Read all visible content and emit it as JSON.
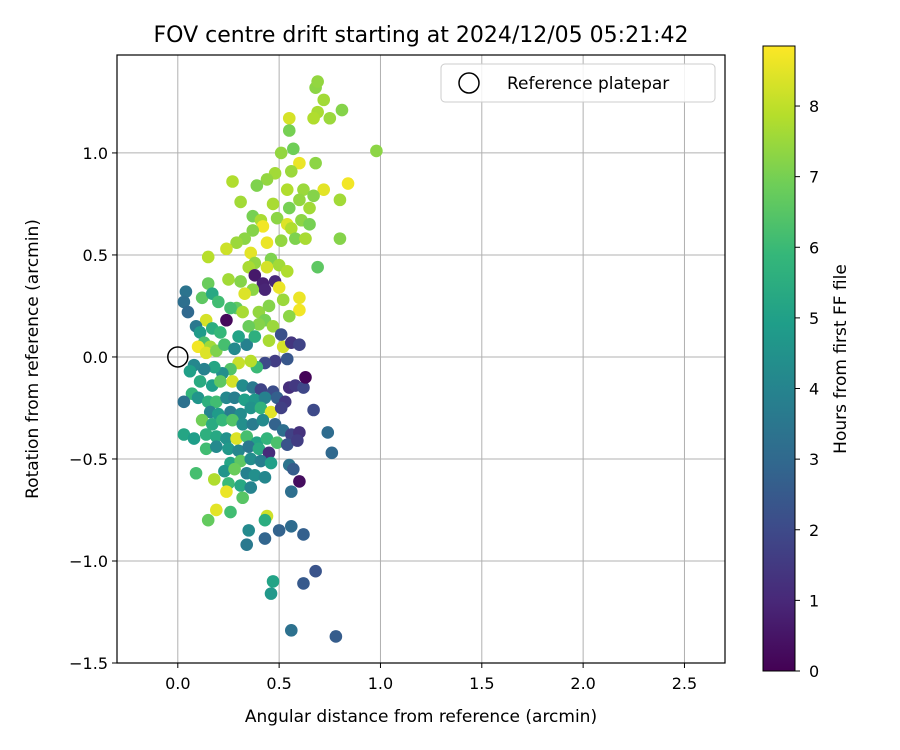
{
  "chart_data": {
    "type": "scatter",
    "title": "FOV centre drift starting at 2024/12/05 05:21:42",
    "xlabel": "Angular distance from reference (arcmin)",
    "ylabel": "Rotation from reference (arcmin)",
    "xlim": [
      -0.3,
      2.7
    ],
    "ylim": [
      -1.5,
      1.48
    ],
    "xticks": [
      0.0,
      0.5,
      1.0,
      1.5,
      2.0,
      2.5
    ],
    "xtick_labels": [
      "0.0",
      "0.5",
      "1.0",
      "1.5",
      "2.0",
      "2.5"
    ],
    "yticks": [
      -1.5,
      -1.0,
      -0.5,
      0.0,
      0.5,
      1.0
    ],
    "ytick_labels": [
      "−1.5",
      "−1.0",
      "−0.5",
      "0.0",
      "0.5",
      "1.0"
    ],
    "grid": true,
    "legend": {
      "placement": "top-right",
      "entries": [
        {
          "label": "Reference platepar",
          "marker": "open-circle"
        }
      ]
    },
    "reference_point": {
      "x": 0.0,
      "y": 0.0
    },
    "colorbar": {
      "label": "Hours from first FF file",
      "colormap": "viridis",
      "range": [
        0,
        8.85
      ],
      "ticks": [
        0,
        1,
        2,
        3,
        4,
        5,
        6,
        7,
        8
      ],
      "tick_labels": [
        "0",
        "1",
        "2",
        "3",
        "4",
        "5",
        "6",
        "7",
        "8"
      ]
    },
    "colormap_stops": [
      "#440154",
      "#482878",
      "#3e4989",
      "#31688e",
      "#26828e",
      "#1f9e89",
      "#35b779",
      "#6ece58",
      "#b5de2b",
      "#fde725"
    ],
    "points": [
      {
        "x": 0.98,
        "y": 1.01,
        "h": 7.3
      },
      {
        "x": 0.84,
        "y": 0.85,
        "h": 8.7
      },
      {
        "x": 0.81,
        "y": 1.21,
        "h": 7.2
      },
      {
        "x": 0.75,
        "y": 1.17,
        "h": 7.5
      },
      {
        "x": 0.68,
        "y": 1.32,
        "h": 7.3
      },
      {
        "x": 0.72,
        "y": 1.26,
        "h": 7.6
      },
      {
        "x": 0.69,
        "y": 1.2,
        "h": 7.7
      },
      {
        "x": 0.67,
        "y": 1.17,
        "h": 7.8
      },
      {
        "x": 0.69,
        "y": 1.35,
        "h": 7.4
      },
      {
        "x": 0.55,
        "y": 1.17,
        "h": 8.3
      },
      {
        "x": 0.55,
        "y": 1.11,
        "h": 7.0
      },
      {
        "x": 0.57,
        "y": 1.02,
        "h": 6.9
      },
      {
        "x": 0.51,
        "y": 1.0,
        "h": 7.4
      },
      {
        "x": 0.6,
        "y": 0.95,
        "h": 8.6
      },
      {
        "x": 0.68,
        "y": 0.95,
        "h": 7.3
      },
      {
        "x": 0.56,
        "y": 0.91,
        "h": 7.5
      },
      {
        "x": 0.48,
        "y": 0.9,
        "h": 7.6
      },
      {
        "x": 0.44,
        "y": 0.87,
        "h": 7.4
      },
      {
        "x": 0.39,
        "y": 0.84,
        "h": 7.1
      },
      {
        "x": 0.27,
        "y": 0.86,
        "h": 7.8
      },
      {
        "x": 0.31,
        "y": 0.76,
        "h": 7.6
      },
      {
        "x": 0.54,
        "y": 0.82,
        "h": 7.8
      },
      {
        "x": 0.62,
        "y": 0.82,
        "h": 7.5
      },
      {
        "x": 0.72,
        "y": 0.82,
        "h": 8.5
      },
      {
        "x": 0.67,
        "y": 0.79,
        "h": 7.2
      },
      {
        "x": 0.6,
        "y": 0.77,
        "h": 7.4
      },
      {
        "x": 0.65,
        "y": 0.73,
        "h": 7.6
      },
      {
        "x": 0.55,
        "y": 0.73,
        "h": 7.0
      },
      {
        "x": 0.47,
        "y": 0.75,
        "h": 7.7
      },
      {
        "x": 0.8,
        "y": 0.77,
        "h": 7.6
      },
      {
        "x": 0.37,
        "y": 0.69,
        "h": 7.0
      },
      {
        "x": 0.41,
        "y": 0.67,
        "h": 7.7
      },
      {
        "x": 0.49,
        "y": 0.68,
        "h": 7.3
      },
      {
        "x": 0.61,
        "y": 0.67,
        "h": 7.3
      },
      {
        "x": 0.54,
        "y": 0.65,
        "h": 8.4
      },
      {
        "x": 0.42,
        "y": 0.64,
        "h": 8.7
      },
      {
        "x": 0.37,
        "y": 0.62,
        "h": 7.2
      },
      {
        "x": 0.56,
        "y": 0.63,
        "h": 7.8
      },
      {
        "x": 0.65,
        "y": 0.65,
        "h": 7.0
      },
      {
        "x": 0.58,
        "y": 0.58,
        "h": 7.1
      },
      {
        "x": 0.51,
        "y": 0.57,
        "h": 7.4
      },
      {
        "x": 0.44,
        "y": 0.56,
        "h": 8.6
      },
      {
        "x": 0.33,
        "y": 0.58,
        "h": 7.3
      },
      {
        "x": 0.29,
        "y": 0.56,
        "h": 7.5
      },
      {
        "x": 0.24,
        "y": 0.53,
        "h": 8.2
      },
      {
        "x": 0.36,
        "y": 0.51,
        "h": 8.5
      },
      {
        "x": 0.15,
        "y": 0.49,
        "h": 7.9
      },
      {
        "x": 0.63,
        "y": 0.58,
        "h": 7.7
      },
      {
        "x": 0.8,
        "y": 0.58,
        "h": 7.2
      },
      {
        "x": 0.46,
        "y": 0.48,
        "h": 7.1
      },
      {
        "x": 0.38,
        "y": 0.46,
        "h": 7.4
      },
      {
        "x": 0.35,
        "y": 0.44,
        "h": 7.7
      },
      {
        "x": 0.44,
        "y": 0.44,
        "h": 8.3
      },
      {
        "x": 0.5,
        "y": 0.45,
        "h": 7.6
      },
      {
        "x": 0.69,
        "y": 0.44,
        "h": 6.6
      },
      {
        "x": 0.54,
        "y": 0.42,
        "h": 7.8
      },
      {
        "x": 0.38,
        "y": 0.4,
        "h": 0.6
      },
      {
        "x": 0.25,
        "y": 0.38,
        "h": 7.6
      },
      {
        "x": 0.31,
        "y": 0.37,
        "h": 7.2
      },
      {
        "x": 0.42,
        "y": 0.36,
        "h": 0.8
      },
      {
        "x": 0.48,
        "y": 0.37,
        "h": 1.0
      },
      {
        "x": 0.43,
        "y": 0.33,
        "h": 0.9
      },
      {
        "x": 0.37,
        "y": 0.33,
        "h": 7.3
      },
      {
        "x": 0.33,
        "y": 0.31,
        "h": 8.4
      },
      {
        "x": 0.5,
        "y": 0.34,
        "h": 8.6
      },
      {
        "x": 0.15,
        "y": 0.36,
        "h": 6.8
      },
      {
        "x": 0.12,
        "y": 0.29,
        "h": 6.6
      },
      {
        "x": 0.17,
        "y": 0.31,
        "h": 5.3
      },
      {
        "x": 0.2,
        "y": 0.27,
        "h": 6.1
      },
      {
        "x": 0.29,
        "y": 0.24,
        "h": 6.7
      },
      {
        "x": 0.26,
        "y": 0.24,
        "h": 6.2
      },
      {
        "x": 0.32,
        "y": 0.22,
        "h": 7.7
      },
      {
        "x": 0.4,
        "y": 0.22,
        "h": 7.4
      },
      {
        "x": 0.45,
        "y": 0.25,
        "h": 7.2
      },
      {
        "x": 0.52,
        "y": 0.28,
        "h": 7.5
      },
      {
        "x": 0.6,
        "y": 0.29,
        "h": 8.6
      },
      {
        "x": 0.6,
        "y": 0.23,
        "h": 8.7
      },
      {
        "x": 0.55,
        "y": 0.2,
        "h": 7.3
      },
      {
        "x": 0.43,
        "y": 0.18,
        "h": 7.0
      },
      {
        "x": 0.4,
        "y": 0.16,
        "h": 7.2
      },
      {
        "x": 0.35,
        "y": 0.15,
        "h": 6.8
      },
      {
        "x": 0.47,
        "y": 0.15,
        "h": 7.5
      },
      {
        "x": 0.24,
        "y": 0.18,
        "h": 0.2
      },
      {
        "x": 0.14,
        "y": 0.18,
        "h": 8.3
      },
      {
        "x": 0.04,
        "y": 0.32,
        "h": 3.4
      },
      {
        "x": 0.03,
        "y": 0.27,
        "h": 3.2
      },
      {
        "x": 0.05,
        "y": 0.22,
        "h": 3.0
      },
      {
        "x": 0.09,
        "y": 0.15,
        "h": 3.6
      },
      {
        "x": 0.11,
        "y": 0.12,
        "h": 4.8
      },
      {
        "x": 0.17,
        "y": 0.14,
        "h": 5.5
      },
      {
        "x": 0.21,
        "y": 0.12,
        "h": 5.9
      },
      {
        "x": 0.13,
        "y": 0.07,
        "h": 6.3
      },
      {
        "x": 0.16,
        "y": 0.05,
        "h": 7.6
      },
      {
        "x": 0.1,
        "y": 0.05,
        "h": 8.7
      },
      {
        "x": 0.14,
        "y": 0.02,
        "h": 8.4
      },
      {
        "x": 0.19,
        "y": 0.03,
        "h": 7.1
      },
      {
        "x": 0.23,
        "y": 0.06,
        "h": 6.2
      },
      {
        "x": 0.28,
        "y": 0.04,
        "h": 4.2
      },
      {
        "x": 0.34,
        "y": 0.06,
        "h": 3.9
      },
      {
        "x": 0.3,
        "y": 0.1,
        "h": 5.1
      },
      {
        "x": 0.38,
        "y": 0.1,
        "h": 5.6
      },
      {
        "x": 0.45,
        "y": 0.08,
        "h": 7.7
      },
      {
        "x": 0.52,
        "y": 0.05,
        "h": 8.3
      },
      {
        "x": 0.56,
        "y": 0.07,
        "h": 1.4
      },
      {
        "x": 0.6,
        "y": 0.06,
        "h": 1.8
      },
      {
        "x": 0.51,
        "y": 0.11,
        "h": 2.2
      },
      {
        "x": 0.54,
        "y": -0.01,
        "h": 2.4
      },
      {
        "x": 0.48,
        "y": -0.02,
        "h": 1.6
      },
      {
        "x": 0.43,
        "y": -0.03,
        "h": 2.0
      },
      {
        "x": 0.39,
        "y": -0.05,
        "h": 6.0
      },
      {
        "x": 0.36,
        "y": -0.02,
        "h": 7.9
      },
      {
        "x": 0.3,
        "y": -0.03,
        "h": 8.1
      },
      {
        "x": 0.26,
        "y": -0.06,
        "h": 6.4
      },
      {
        "x": 0.22,
        "y": -0.08,
        "h": 4.4
      },
      {
        "x": 0.18,
        "y": -0.05,
        "h": 5.2
      },
      {
        "x": 0.13,
        "y": -0.06,
        "h": 3.9
      },
      {
        "x": 0.08,
        "y": -0.04,
        "h": 4.1
      },
      {
        "x": 0.06,
        "y": -0.07,
        "h": 5.0
      },
      {
        "x": 0.11,
        "y": -0.12,
        "h": 5.4
      },
      {
        "x": 0.17,
        "y": -0.14,
        "h": 4.9
      },
      {
        "x": 0.21,
        "y": -0.12,
        "h": 6.6
      },
      {
        "x": 0.27,
        "y": -0.12,
        "h": 8.3
      },
      {
        "x": 0.32,
        "y": -0.14,
        "h": 4.3
      },
      {
        "x": 0.37,
        "y": -0.15,
        "h": 3.6
      },
      {
        "x": 0.41,
        "y": -0.16,
        "h": 1.8
      },
      {
        "x": 0.47,
        "y": -0.17,
        "h": 2.1
      },
      {
        "x": 0.55,
        "y": -0.15,
        "h": 1.2
      },
      {
        "x": 0.58,
        "y": -0.14,
        "h": 1.5
      },
      {
        "x": 0.62,
        "y": -0.15,
        "h": 1.9
      },
      {
        "x": 0.63,
        "y": -0.1,
        "h": 0.1
      },
      {
        "x": 0.07,
        "y": -0.18,
        "h": 5.8
      },
      {
        "x": 0.03,
        "y": -0.22,
        "h": 3.3
      },
      {
        "x": 0.1,
        "y": -0.2,
        "h": 4.6
      },
      {
        "x": 0.15,
        "y": -0.22,
        "h": 5.6
      },
      {
        "x": 0.19,
        "y": -0.22,
        "h": 6.1
      },
      {
        "x": 0.24,
        "y": -0.2,
        "h": 4.1
      },
      {
        "x": 0.28,
        "y": -0.2,
        "h": 3.8
      },
      {
        "x": 0.33,
        "y": -0.21,
        "h": 5.0
      },
      {
        "x": 0.38,
        "y": -0.21,
        "h": 4.7
      },
      {
        "x": 0.43,
        "y": -0.2,
        "h": 3.9
      },
      {
        "x": 0.49,
        "y": -0.2,
        "h": 2.7
      },
      {
        "x": 0.53,
        "y": -0.22,
        "h": 1.5
      },
      {
        "x": 0.16,
        "y": -0.27,
        "h": 4.0
      },
      {
        "x": 0.2,
        "y": -0.28,
        "h": 4.8
      },
      {
        "x": 0.26,
        "y": -0.27,
        "h": 3.7
      },
      {
        "x": 0.31,
        "y": -0.28,
        "h": 4.3
      },
      {
        "x": 0.36,
        "y": -0.25,
        "h": 4.5
      },
      {
        "x": 0.41,
        "y": -0.25,
        "h": 5.7
      },
      {
        "x": 0.46,
        "y": -0.27,
        "h": 8.5
      },
      {
        "x": 0.51,
        "y": -0.25,
        "h": 1.7
      },
      {
        "x": 0.67,
        "y": -0.26,
        "h": 2.0
      },
      {
        "x": 0.12,
        "y": -0.31,
        "h": 6.9
      },
      {
        "x": 0.17,
        "y": -0.33,
        "h": 5.4
      },
      {
        "x": 0.22,
        "y": -0.31,
        "h": 5.9
      },
      {
        "x": 0.27,
        "y": -0.31,
        "h": 6.4
      },
      {
        "x": 0.32,
        "y": -0.33,
        "h": 4.4
      },
      {
        "x": 0.37,
        "y": -0.33,
        "h": 3.7
      },
      {
        "x": 0.42,
        "y": -0.31,
        "h": 4.2
      },
      {
        "x": 0.48,
        "y": -0.33,
        "h": 2.8
      },
      {
        "x": 0.52,
        "y": -0.36,
        "h": 3.2
      },
      {
        "x": 0.56,
        "y": -0.38,
        "h": 1.8
      },
      {
        "x": 0.6,
        "y": -0.37,
        "h": 1.3
      },
      {
        "x": 0.74,
        "y": -0.37,
        "h": 3.1
      },
      {
        "x": 0.03,
        "y": -0.38,
        "h": 5.2
      },
      {
        "x": 0.08,
        "y": -0.4,
        "h": 4.9
      },
      {
        "x": 0.14,
        "y": -0.38,
        "h": 5.6
      },
      {
        "x": 0.19,
        "y": -0.39,
        "h": 5.3
      },
      {
        "x": 0.24,
        "y": -0.4,
        "h": 4.5
      },
      {
        "x": 0.29,
        "y": -0.4,
        "h": 8.4
      },
      {
        "x": 0.34,
        "y": -0.39,
        "h": 6.2
      },
      {
        "x": 0.39,
        "y": -0.42,
        "h": 5.1
      },
      {
        "x": 0.44,
        "y": -0.4,
        "h": 5.8
      },
      {
        "x": 0.49,
        "y": -0.42,
        "h": 6.3
      },
      {
        "x": 0.54,
        "y": -0.43,
        "h": 2.3
      },
      {
        "x": 0.59,
        "y": -0.41,
        "h": 1.6
      },
      {
        "x": 0.14,
        "y": -0.45,
        "h": 6.1
      },
      {
        "x": 0.19,
        "y": -0.44,
        "h": 4.2
      },
      {
        "x": 0.25,
        "y": -0.45,
        "h": 4.7
      },
      {
        "x": 0.3,
        "y": -0.46,
        "h": 4.1
      },
      {
        "x": 0.35,
        "y": -0.44,
        "h": 3.5
      },
      {
        "x": 0.4,
        "y": -0.45,
        "h": 5.4
      },
      {
        "x": 0.45,
        "y": -0.47,
        "h": 1.1
      },
      {
        "x": 0.76,
        "y": -0.47,
        "h": 3.0
      },
      {
        "x": 0.26,
        "y": -0.52,
        "h": 5.2
      },
      {
        "x": 0.31,
        "y": -0.51,
        "h": 6.6
      },
      {
        "x": 0.36,
        "y": -0.5,
        "h": 4.3
      },
      {
        "x": 0.41,
        "y": -0.51,
        "h": 3.8
      },
      {
        "x": 0.46,
        "y": -0.52,
        "h": 5.0
      },
      {
        "x": 0.55,
        "y": -0.53,
        "h": 3.4
      },
      {
        "x": 0.57,
        "y": -0.55,
        "h": 2.6
      },
      {
        "x": 0.09,
        "y": -0.57,
        "h": 6.2
      },
      {
        "x": 0.23,
        "y": -0.56,
        "h": 4.6
      },
      {
        "x": 0.28,
        "y": -0.55,
        "h": 6.8
      },
      {
        "x": 0.34,
        "y": -0.57,
        "h": 3.9
      },
      {
        "x": 0.38,
        "y": -0.58,
        "h": 4.4
      },
      {
        "x": 0.43,
        "y": -0.59,
        "h": 4.1
      },
      {
        "x": 0.6,
        "y": -0.61,
        "h": 0.3
      },
      {
        "x": 0.18,
        "y": -0.6,
        "h": 7.8
      },
      {
        "x": 0.25,
        "y": -0.62,
        "h": 6.0
      },
      {
        "x": 0.31,
        "y": -0.63,
        "h": 5.3
      },
      {
        "x": 0.36,
        "y": -0.64,
        "h": 4.0
      },
      {
        "x": 0.56,
        "y": -0.66,
        "h": 3.2
      },
      {
        "x": 0.24,
        "y": -0.66,
        "h": 8.6
      },
      {
        "x": 0.32,
        "y": -0.69,
        "h": 6.5
      },
      {
        "x": 0.19,
        "y": -0.75,
        "h": 8.5
      },
      {
        "x": 0.26,
        "y": -0.76,
        "h": 6.1
      },
      {
        "x": 0.15,
        "y": -0.8,
        "h": 6.7
      },
      {
        "x": 0.44,
        "y": -0.78,
        "h": 8.2
      },
      {
        "x": 0.43,
        "y": -0.8,
        "h": 5.5
      },
      {
        "x": 0.35,
        "y": -0.85,
        "h": 4.2
      },
      {
        "x": 0.5,
        "y": -0.85,
        "h": 2.8
      },
      {
        "x": 0.56,
        "y": -0.83,
        "h": 3.1
      },
      {
        "x": 0.62,
        "y": -0.87,
        "h": 2.7
      },
      {
        "x": 0.43,
        "y": -0.89,
        "h": 2.9
      },
      {
        "x": 0.34,
        "y": -0.92,
        "h": 3.6
      },
      {
        "x": 0.47,
        "y": -1.1,
        "h": 5.1
      },
      {
        "x": 0.62,
        "y": -1.11,
        "h": 2.5
      },
      {
        "x": 0.68,
        "y": -1.05,
        "h": 2.3
      },
      {
        "x": 0.46,
        "y": -1.16,
        "h": 4.7
      },
      {
        "x": 0.56,
        "y": -1.34,
        "h": 3.3
      },
      {
        "x": 0.78,
        "y": -1.37,
        "h": 2.6
      }
    ]
  }
}
